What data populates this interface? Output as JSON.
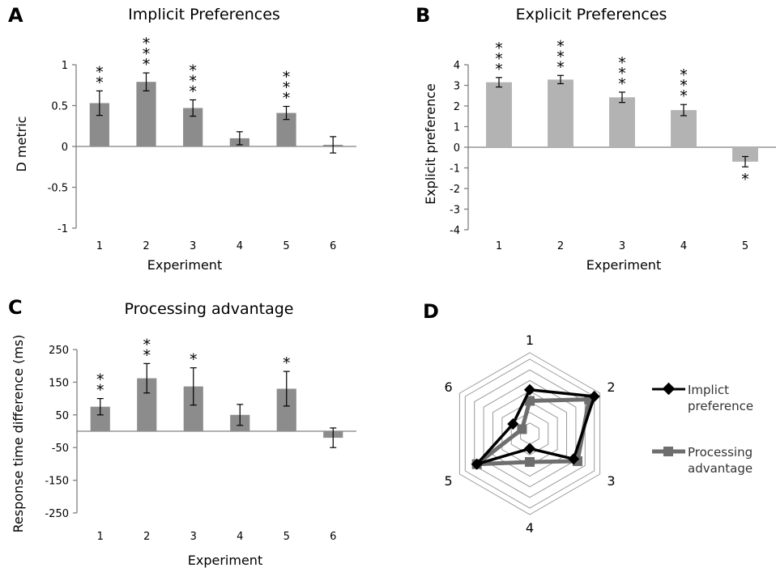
{
  "colors": {
    "dark_bar": "#8c8c8c",
    "light_bar": "#b3b3b3",
    "axis": "#808080",
    "grid": "#9a9a9a",
    "implicit_line": "#000000",
    "processing_line": "#6e6e6e"
  },
  "chart_data": [
    {
      "panel": "A",
      "type": "bar",
      "title": "Implicit Preferences",
      "xlabel": "Experiment",
      "ylabel": "D metric",
      "ylim": [
        -1,
        1
      ],
      "yticks": [
        "1",
        "0.5",
        "0",
        "-0.5",
        "-1"
      ],
      "ytick_values": [
        1,
        0.5,
        0,
        -0.5,
        -1
      ],
      "categories": [
        "1",
        "2",
        "3",
        "4",
        "5",
        "6"
      ],
      "values": [
        0.53,
        0.79,
        0.47,
        0.1,
        0.41,
        0.02
      ],
      "errors": [
        0.15,
        0.11,
        0.1,
        0.08,
        0.08,
        0.1
      ],
      "significance": [
        "**",
        "***",
        "***",
        "",
        "***",
        ""
      ],
      "color": "#8c8c8c"
    },
    {
      "panel": "B",
      "type": "bar",
      "title": "Explicit Preferences",
      "xlabel": "Experiment",
      "ylabel": "Explicit preference",
      "ylim": [
        -4,
        4
      ],
      "yticks": [
        "4",
        "3",
        "2",
        "1",
        "0",
        "-1",
        "-2",
        "-3",
        "-4"
      ],
      "ytick_values": [
        4,
        3,
        2,
        1,
        0,
        -1,
        -2,
        -3,
        -4
      ],
      "categories": [
        "1",
        "2",
        "3",
        "4",
        "5"
      ],
      "values": [
        3.15,
        3.28,
        2.42,
        1.8,
        -0.7
      ],
      "errors": [
        0.23,
        0.2,
        0.25,
        0.27,
        0.25
      ],
      "significance": [
        "***",
        "***",
        "***",
        "***",
        "*"
      ],
      "color": "#b3b3b3"
    },
    {
      "panel": "C",
      "type": "bar",
      "title": "Processing advantage",
      "xlabel": "Experiment",
      "ylabel": "Response time difference (ms)",
      "ylim": [
        -250,
        250
      ],
      "yticks": [
        "250",
        "150",
        "50",
        "-50",
        "-150",
        "-250"
      ],
      "ytick_values": [
        250,
        150,
        50,
        -50,
        -150,
        -250
      ],
      "categories": [
        "1",
        "2",
        "3",
        "4",
        "5",
        "6"
      ],
      "values": [
        75,
        162,
        137,
        50,
        130,
        -20
      ],
      "errors": [
        25,
        45,
        57,
        32,
        53,
        30
      ],
      "significance": [
        "**",
        "**",
        "*",
        "",
        "*",
        ""
      ],
      "color": "#8c8c8c"
    },
    {
      "panel": "D",
      "type": "radar",
      "axes": [
        "1",
        "2",
        "3",
        "4",
        "5",
        "6"
      ],
      "rings": 7,
      "series": [
        {
          "name": "Implict preference",
          "values": [
            0.59,
            1.0,
            0.68,
            0.2,
            0.82,
            0.26
          ],
          "color": "#000000"
        },
        {
          "name": "Processing advantage",
          "values": [
            0.44,
            0.92,
            0.74,
            0.38,
            0.82,
            0.12
          ],
          "color": "#6e6e6e"
        }
      ],
      "legend": [
        {
          "line1": "Implict",
          "line2": "preference"
        },
        {
          "line1": "Processing",
          "line2": "advantage"
        }
      ]
    }
  ]
}
